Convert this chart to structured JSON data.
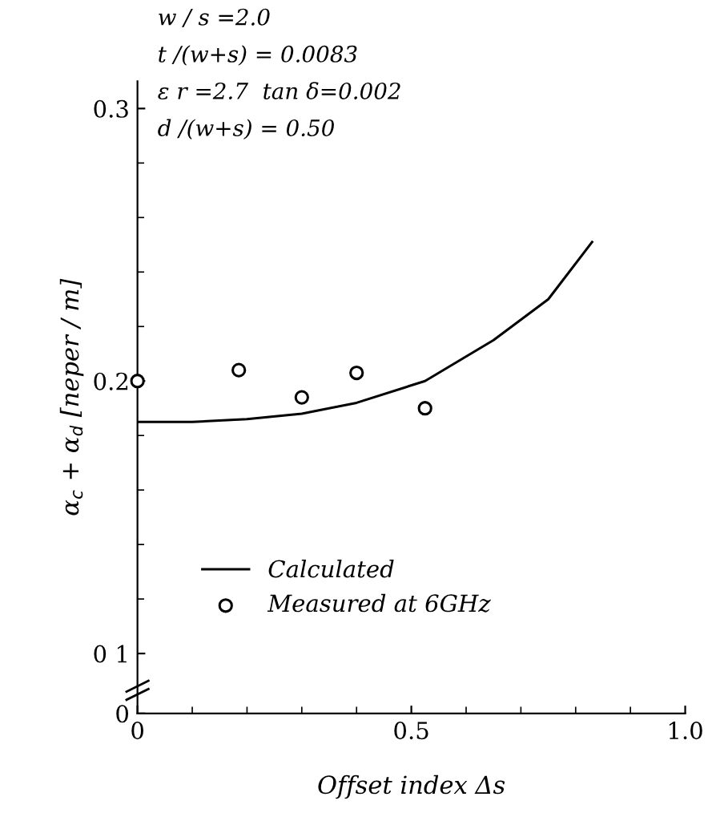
{
  "chart_data": {
    "type": "line",
    "xlabel": "Offset index Δs",
    "ylabel": "α$_{c}$ + α$_{d}$ [neper / m]",
    "annotations": [
      "w / s =2.0",
      "t /(w+s) = 0.0083",
      "ε r =2.7  tan δ=0.002",
      "d /(w+s) = 0.50"
    ],
    "series": [
      {
        "name": "Calculated",
        "color": "#000000",
        "marker": "none",
        "x": [
          0,
          0.1,
          0.2,
          0.3,
          0.4,
          0.525,
          0.65,
          0.75,
          0.83
        ],
        "values": [
          0.185,
          0.185,
          0.186,
          0.188,
          0.192,
          0.2,
          0.215,
          0.23,
          0.251
        ]
      },
      {
        "name": "Measured at 6GHz",
        "type": "scatter",
        "color": "#000000",
        "marker": "circle",
        "x": [
          0,
          0.185,
          0.3,
          0.4,
          0.525
        ],
        "values": [
          0.2,
          0.204,
          0.194,
          0.203,
          0.19
        ]
      }
    ],
    "xlim": [
      0,
      1.0
    ],
    "xticks": [
      0,
      0.5,
      {
        "value": 1.0,
        "label": "1.0"
      }
    ],
    "ylim": [
      0.078,
      0.31
    ],
    "yticks": [
      {
        "value": 0.078,
        "label": "0"
      },
      {
        "value": 0.1,
        "label": "0 1"
      },
      0.2,
      0.3
    ],
    "grid": false,
    "legend": "bottom left"
  }
}
